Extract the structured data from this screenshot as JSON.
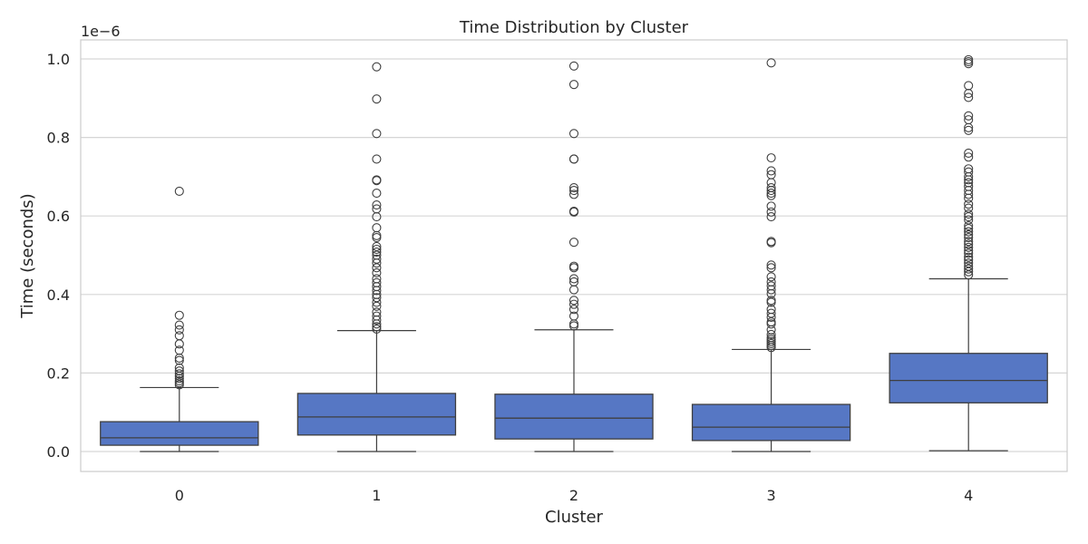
{
  "chart_data": {
    "type": "box",
    "title": "Time Distribution by Cluster",
    "xlabel": "Cluster",
    "ylabel": "Time (seconds)",
    "y_offset_label": "1e−6",
    "y_scale": 1e-06,
    "ylim": [
      -0.05,
      1.05
    ],
    "yticks": [
      0.0,
      0.2,
      0.4,
      0.6,
      0.8,
      1.0
    ],
    "ytick_labels": [
      "0.0",
      "0.2",
      "0.4",
      "0.6",
      "0.8",
      "1.0"
    ],
    "grid": true,
    "box_color": "#5677c4",
    "edge_color": "#3f3f3f",
    "categories": [
      "0",
      "1",
      "2",
      "3",
      "4"
    ],
    "boxes": [
      {
        "category": "0",
        "whisker_low": 0.0,
        "q1": 0.016,
        "median": 0.035,
        "q3": 0.076,
        "whisker_high": 0.163,
        "fliers": [
          0.663,
          0.347,
          0.322,
          0.31,
          0.295,
          0.274,
          0.258,
          0.238,
          0.232,
          0.213,
          0.205,
          0.198,
          0.192,
          0.186,
          0.18,
          0.175,
          0.17
        ]
      },
      {
        "category": "1",
        "whisker_low": 0.0,
        "q1": 0.042,
        "median": 0.088,
        "q3": 0.148,
        "whisker_high": 0.308,
        "fliers": [
          0.98,
          0.898,
          0.81,
          0.745,
          0.692,
          0.69,
          0.658,
          0.628,
          0.618,
          0.598,
          0.57,
          0.55,
          0.545,
          0.522,
          0.515,
          0.508,
          0.5,
          0.49,
          0.48,
          0.468,
          0.455,
          0.44,
          0.43,
          0.42,
          0.41,
          0.4,
          0.392,
          0.38,
          0.37,
          0.355,
          0.345,
          0.335,
          0.325,
          0.318,
          0.312
        ]
      },
      {
        "category": "2",
        "whisker_low": 0.0,
        "q1": 0.032,
        "median": 0.085,
        "q3": 0.146,
        "whisker_high": 0.31,
        "fliers": [
          0.982,
          0.935,
          0.81,
          0.745,
          0.745,
          0.672,
          0.665,
          0.655,
          0.612,
          0.61,
          0.533,
          0.472,
          0.468,
          0.44,
          0.432,
          0.412,
          0.385,
          0.375,
          0.362,
          0.345,
          0.325,
          0.32
        ]
      },
      {
        "category": "3",
        "whisker_low": 0.0,
        "q1": 0.028,
        "median": 0.062,
        "q3": 0.12,
        "whisker_high": 0.26,
        "fliers": [
          0.99,
          0.748,
          0.715,
          0.705,
          0.685,
          0.672,
          0.665,
          0.658,
          0.652,
          0.625,
          0.61,
          0.598,
          0.535,
          0.532,
          0.475,
          0.468,
          0.445,
          0.432,
          0.422,
          0.412,
          0.402,
          0.385,
          0.38,
          0.362,
          0.352,
          0.342,
          0.33,
          0.325,
          0.31,
          0.298,
          0.29,
          0.285,
          0.28,
          0.275,
          0.27,
          0.265
        ]
      },
      {
        "category": "4",
        "whisker_low": 0.002,
        "q1": 0.124,
        "median": 0.181,
        "q3": 0.25,
        "whisker_high": 0.44,
        "fliers": [
          0.998,
          0.993,
          0.988,
          0.932,
          0.912,
          0.902,
          0.855,
          0.845,
          0.825,
          0.818,
          0.76,
          0.75,
          0.72,
          0.712,
          0.7,
          0.692,
          0.685,
          0.675,
          0.665,
          0.655,
          0.645,
          0.63,
          0.62,
          0.605,
          0.598,
          0.59,
          0.575,
          0.568,
          0.56,
          0.552,
          0.545,
          0.535,
          0.528,
          0.52,
          0.512,
          0.505,
          0.495,
          0.488,
          0.48,
          0.472,
          0.465,
          0.458,
          0.45
        ]
      }
    ]
  }
}
